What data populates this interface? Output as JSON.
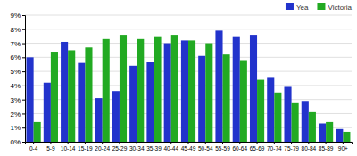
{
  "chart_data": {
    "type": "bar",
    "categories": [
      "0-4",
      "5-9",
      "10-14",
      "15-19",
      "20-24",
      "25-29",
      "30-34",
      "35-39",
      "40-44",
      "45-49",
      "50-54",
      "55-59",
      "60-64",
      "65-69",
      "70-74",
      "75-79",
      "80-84",
      "85-89",
      "90+"
    ],
    "series": [
      {
        "name": "Yea",
        "color": "#2233cc",
        "values": [
          6.0,
          4.2,
          7.1,
          5.6,
          3.1,
          3.6,
          5.4,
          5.7,
          7.0,
          7.2,
          6.1,
          7.9,
          7.5,
          7.6,
          4.6,
          3.9,
          2.9,
          1.3,
          0.9
        ]
      },
      {
        "name": "Victoria",
        "color": "#22aa22",
        "values": [
          1.4,
          6.4,
          6.5,
          6.7,
          7.3,
          7.6,
          7.3,
          7.5,
          7.6,
          7.2,
          7.0,
          6.2,
          5.8,
          4.4,
          3.5,
          2.8,
          2.1,
          1.4,
          0.7
        ]
      }
    ],
    "ylim": [
      0,
      9
    ],
    "yticks": [
      {
        "value": 0,
        "label": "0%"
      },
      {
        "value": 1,
        "label": "1%"
      },
      {
        "value": 2,
        "label": "2%"
      },
      {
        "value": 3,
        "label": "3%"
      },
      {
        "value": 4,
        "label": "4%"
      },
      {
        "value": 5,
        "label": "5%"
      },
      {
        "value": 6,
        "label": "6%"
      },
      {
        "value": 7,
        "label": "7%"
      },
      {
        "value": 8,
        "label": "8%"
      },
      {
        "value": 9,
        "label": "9%"
      }
    ],
    "grid": true,
    "legend": "upper right"
  }
}
